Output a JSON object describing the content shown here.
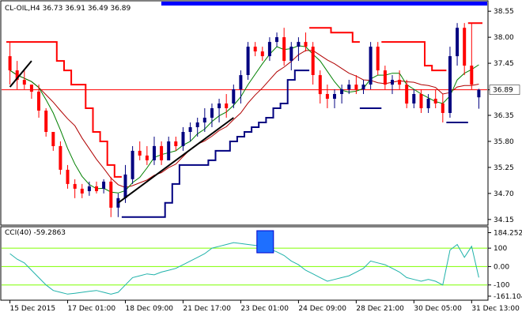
{
  "chart_data": {
    "type": "candlestick",
    "symbol_line": "CL-OIL,H4  36.73 36.91 36.49 36.89",
    "current_price_label": "36.89",
    "current_price": 36.89,
    "price_ticks": [
      "38.55",
      "38.00",
      "37.45",
      "36.89",
      "36.35",
      "35.80",
      "35.25",
      "34.70",
      "34.15"
    ],
    "price_tick_values": [
      38.55,
      38.0,
      37.45,
      36.89,
      36.35,
      35.8,
      35.25,
      34.7,
      34.15
    ],
    "ylim": [
      34.08,
      38.62
    ],
    "time_labels": [
      "15 Dec 2015",
      "17 Dec 01:00",
      "18 Dec 09:00",
      "21 Dec 17:00",
      "23 Dec 01:00",
      "24 Dec 09:00",
      "28 Dec 21:00",
      "30 Dec 05:00",
      "31 Dec 13:00"
    ],
    "time_label_bar_index": [
      0,
      8,
      16,
      24,
      32,
      40,
      48,
      56,
      64
    ],
    "candles": [
      [
        37.6,
        37.9,
        37.0,
        37.3
      ],
      [
        37.3,
        37.5,
        36.9,
        37.1
      ],
      [
        37.1,
        37.3,
        36.9,
        37.0
      ],
      [
        37.0,
        37.0,
        36.7,
        36.85
      ],
      [
        36.85,
        37.0,
        36.3,
        36.45
      ],
      [
        36.45,
        36.5,
        35.9,
        36.0
      ],
      [
        36.0,
        36.0,
        35.6,
        35.7
      ],
      [
        35.7,
        35.8,
        35.1,
        35.2
      ],
      [
        35.2,
        35.3,
        34.8,
        34.9
      ],
      [
        34.9,
        35.0,
        34.6,
        34.8
      ],
      [
        34.8,
        34.9,
        34.6,
        34.7
      ],
      [
        34.75,
        34.95,
        34.65,
        34.85
      ],
      [
        34.85,
        34.95,
        34.7,
        34.75
      ],
      [
        34.8,
        35.0,
        34.7,
        34.95
      ],
      [
        34.95,
        35.05,
        34.2,
        34.4
      ],
      [
        34.4,
        34.7,
        34.2,
        34.6
      ],
      [
        34.6,
        35.3,
        34.5,
        35.1
      ],
      [
        35.0,
        35.7,
        34.9,
        35.6
      ],
      [
        35.6,
        35.8,
        35.4,
        35.5
      ],
      [
        35.5,
        35.7,
        35.3,
        35.4
      ],
      [
        35.4,
        35.9,
        35.3,
        35.7
      ],
      [
        35.7,
        35.8,
        35.3,
        35.4
      ],
      [
        35.4,
        35.9,
        35.4,
        35.8
      ],
      [
        35.8,
        35.9,
        35.6,
        35.7
      ],
      [
        35.7,
        36.1,
        35.6,
        36.0
      ],
      [
        36.0,
        36.2,
        35.8,
        36.1
      ],
      [
        36.1,
        36.3,
        35.9,
        36.2
      ],
      [
        36.2,
        36.5,
        36.0,
        36.3
      ],
      [
        36.3,
        36.6,
        36.1,
        36.5
      ],
      [
        36.5,
        36.7,
        36.2,
        36.6
      ],
      [
        36.6,
        36.8,
        36.3,
        36.5
      ],
      [
        36.6,
        37.0,
        36.5,
        36.9
      ],
      [
        36.9,
        37.3,
        36.6,
        37.2
      ],
      [
        37.2,
        37.9,
        37.1,
        37.8
      ],
      [
        37.8,
        37.9,
        37.6,
        37.7
      ],
      [
        37.7,
        37.8,
        37.5,
        37.6
      ],
      [
        37.6,
        38.0,
        37.5,
        37.9
      ],
      [
        37.9,
        38.1,
        37.8,
        38.0
      ],
      [
        38.0,
        38.2,
        37.4,
        37.5
      ],
      [
        37.5,
        37.9,
        37.3,
        37.8
      ],
      [
        37.8,
        38.0,
        37.5,
        37.9
      ],
      [
        37.9,
        38.1,
        37.7,
        37.8
      ],
      [
        37.8,
        37.9,
        37.0,
        37.2
      ],
      [
        37.2,
        37.3,
        36.6,
        36.8
      ],
      [
        36.8,
        37.0,
        36.5,
        36.7
      ],
      [
        36.7,
        36.9,
        36.5,
        36.8
      ],
      [
        36.8,
        37.0,
        36.6,
        36.9
      ],
      [
        36.9,
        37.1,
        36.8,
        37.0
      ],
      [
        37.0,
        37.2,
        36.8,
        36.9
      ],
      [
        36.9,
        37.1,
        36.8,
        37.0
      ],
      [
        37.0,
        37.9,
        36.9,
        37.8
      ],
      [
        37.8,
        37.9,
        37.2,
        37.3
      ],
      [
        37.3,
        37.4,
        36.9,
        37.0
      ],
      [
        37.0,
        37.2,
        36.8,
        37.1
      ],
      [
        37.1,
        37.3,
        36.9,
        37.0
      ],
      [
        37.0,
        37.1,
        36.5,
        36.6
      ],
      [
        36.6,
        36.9,
        36.5,
        36.8
      ],
      [
        36.8,
        36.9,
        36.4,
        36.5
      ],
      [
        36.5,
        36.8,
        36.4,
        36.7
      ],
      [
        36.7,
        36.9,
        36.5,
        36.6
      ],
      [
        36.6,
        36.8,
        36.2,
        36.4
      ],
      [
        36.4,
        37.8,
        36.3,
        37.6
      ],
      [
        37.6,
        38.3,
        37.4,
        38.2
      ],
      [
        38.2,
        38.3,
        37.2,
        37.4
      ],
      [
        37.4,
        38.3,
        36.9,
        37.0
      ],
      [
        36.73,
        36.91,
        36.49,
        36.89
      ]
    ],
    "cci_label": "CCI(40) -59.2863",
    "cci_ticks": [
      "184.2526",
      "100",
      "0.00",
      "-100",
      "-161.104"
    ],
    "cci_tick_values": [
      184.2526,
      100,
      0,
      -100,
      -161.104
    ],
    "cci_ylim": [
      -170,
      195
    ],
    "cci_levels": [
      100,
      0,
      -100
    ],
    "cci_values": [
      70,
      40,
      20,
      -20,
      -60,
      -100,
      -130,
      -140,
      -150,
      -145,
      -140,
      -135,
      -130,
      -140,
      -150,
      -140,
      -100,
      -60,
      -50,
      -40,
      -45,
      -30,
      -20,
      -10,
      10,
      30,
      50,
      70,
      100,
      110,
      120,
      130,
      125,
      120,
      115,
      110,
      95,
      80,
      60,
      30,
      10,
      -20,
      -40,
      -60,
      -80,
      -70,
      -60,
      -50,
      -30,
      -10,
      30,
      20,
      10,
      -10,
      -30,
      -60,
      -70,
      -80,
      -70,
      -80,
      -100,
      90,
      120,
      50,
      110,
      -59.2863
    ],
    "colors": {
      "bull": "#000080",
      "bear": "#ff0000",
      "ma_red": "#b00000",
      "ma_green": "#008000",
      "stop_red": "#ff0000",
      "stop_navy": "#000080",
      "trendline": "#000000",
      "cci_line": "#20b2aa",
      "level_line": "#7fff00",
      "header_bar": "#0000ff",
      "current_price_line": "#ff0000"
    }
  }
}
